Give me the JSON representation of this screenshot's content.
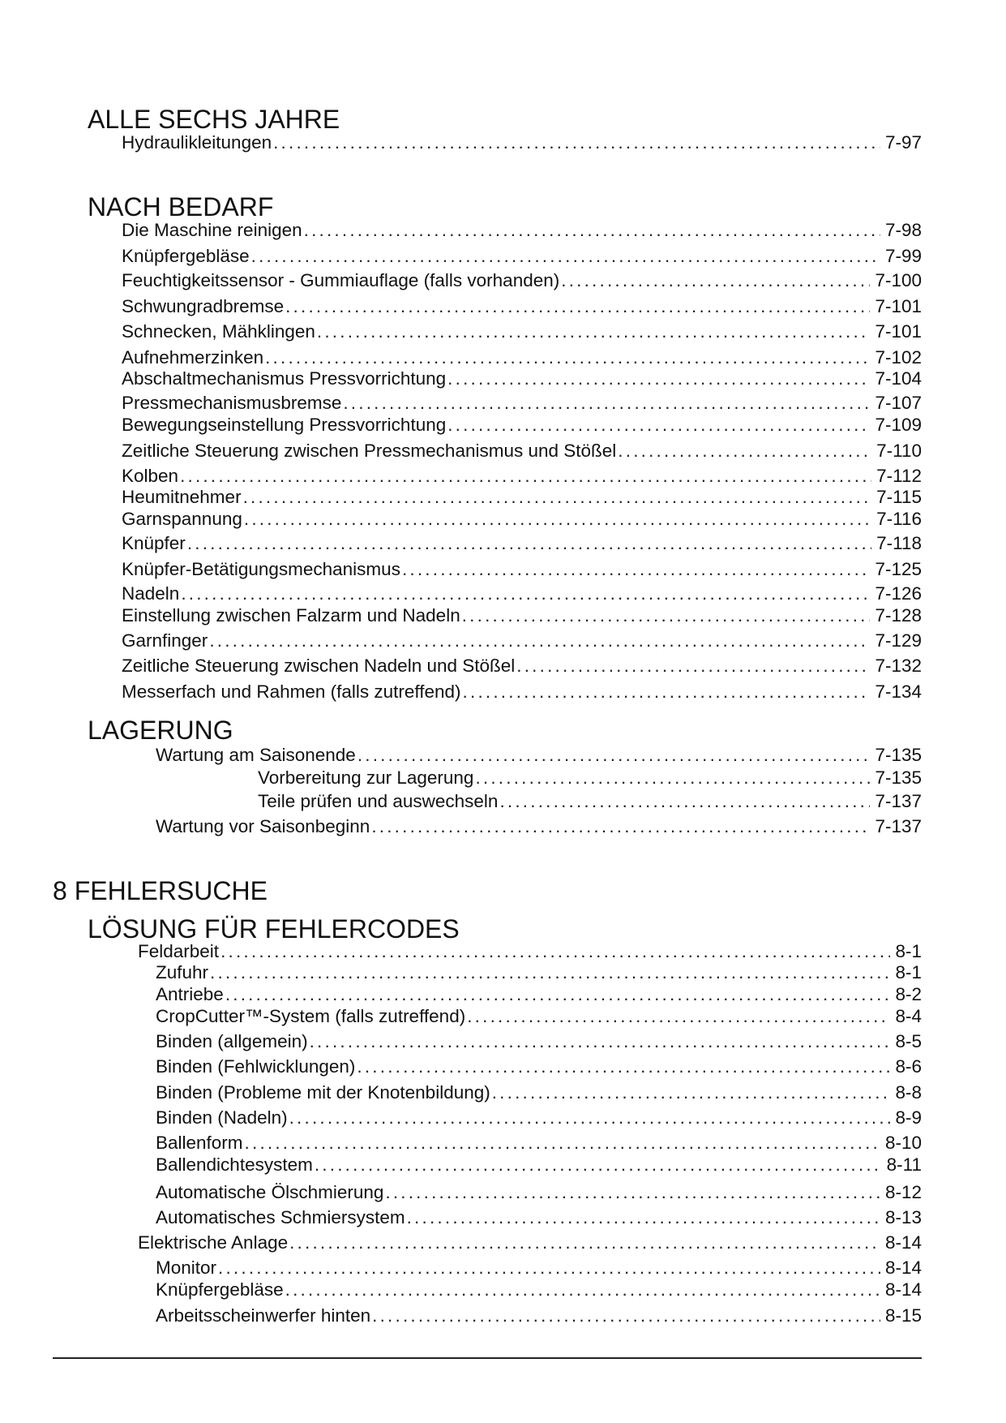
{
  "toc": [
    {
      "kind": "heading",
      "level": 1,
      "text": "ALLE SECHS JAHRE"
    },
    {
      "kind": "entry",
      "level": 1,
      "text": "Hydraulikleitungen",
      "page": "7-97"
    },
    {
      "kind": "heading",
      "level": 1,
      "text": "NACH BEDARF"
    },
    {
      "kind": "entry",
      "level": 1,
      "text": "Die Maschine reinigen",
      "page": "7-98"
    },
    {
      "kind": "entry",
      "level": 1,
      "text": "Knüpfergebläse",
      "page": "7-99"
    },
    {
      "kind": "entry",
      "level": 1,
      "text": "Feuchtigkeitssensor - Gummiauflage (falls vorhanden)",
      "page": "7-100"
    },
    {
      "kind": "entry",
      "level": 1,
      "text": "Schwungradbremse",
      "page": "7-101"
    },
    {
      "kind": "entry",
      "level": 1,
      "text": "Schnecken, Mähklingen",
      "page": "7-101"
    },
    {
      "kind": "entry",
      "level": 1,
      "text": "Aufnehmerzinken",
      "page": "7-102"
    },
    {
      "kind": "entry",
      "level": 1,
      "text": "Abschaltmechanismus Pressvorrichtung",
      "page": "7-104"
    },
    {
      "kind": "entry",
      "level": 1,
      "text": "Pressmechanismusbremse",
      "page": "7-107"
    },
    {
      "kind": "entry",
      "level": 1,
      "text": "Bewegungseinstellung Pressvorrichtung",
      "page": "7-109"
    },
    {
      "kind": "entry",
      "level": 1,
      "text": "Zeitliche Steuerung zwischen Pressmechanismus und Stößel",
      "page": "7-110"
    },
    {
      "kind": "entry",
      "level": 1,
      "text": "Kolben",
      "page": "7-112"
    },
    {
      "kind": "entry",
      "level": 1,
      "text": "Heumitnehmer",
      "page": "7-115"
    },
    {
      "kind": "entry",
      "level": 1,
      "text": "Garnspannung",
      "page": "7-116"
    },
    {
      "kind": "entry",
      "level": 1,
      "text": "Knüpfer",
      "page": "7-118"
    },
    {
      "kind": "entry",
      "level": 1,
      "text": "Knüpfer-Betätigungsmechanismus",
      "page": "7-125"
    },
    {
      "kind": "entry",
      "level": 1,
      "text": "Nadeln",
      "page": "7-126"
    },
    {
      "kind": "entry",
      "level": 1,
      "text": "Einstellung zwischen Falzarm und Nadeln",
      "page": "7-128"
    },
    {
      "kind": "entry",
      "level": 1,
      "text": "Garnfinger",
      "page": "7-129"
    },
    {
      "kind": "entry",
      "level": 1,
      "text": "Zeitliche Steuerung zwischen Nadeln und Stößel",
      "page": "7-132"
    },
    {
      "kind": "entry",
      "level": 1,
      "text": "Messerfach und Rahmen (falls zutreffend)",
      "page": "7-134"
    },
    {
      "kind": "heading",
      "level": 1,
      "text": "LAGERUNG"
    },
    {
      "kind": "entry",
      "level": 2,
      "text": "Wartung am Saisonende",
      "page": "7-135"
    },
    {
      "kind": "entry",
      "level": 3,
      "text": "Vorbereitung zur Lagerung",
      "page": "7-135"
    },
    {
      "kind": "entry",
      "level": 3,
      "text": "Teile prüfen und auswechseln",
      "page": "7-137"
    },
    {
      "kind": "entry",
      "level": 2,
      "text": "Wartung vor Saisonbeginn",
      "page": "7-137"
    },
    {
      "kind": "heading",
      "level": 0,
      "text": "8 FEHLERSUCHE"
    },
    {
      "kind": "heading",
      "level": 1,
      "text": "LÖSUNG FÜR FEHLERCODES"
    },
    {
      "kind": "entry",
      "level": "1b",
      "text": "Feldarbeit",
      "page": "8-1"
    },
    {
      "kind": "entry",
      "level": 2,
      "text": "Zufuhr",
      "page": "8-1"
    },
    {
      "kind": "entry",
      "level": 2,
      "text": "Antriebe",
      "page": "8-2"
    },
    {
      "kind": "entry",
      "level": 2,
      "text": "CropCutter™-System (falls zutreffend)",
      "page": "8-4"
    },
    {
      "kind": "entry",
      "level": 2,
      "text": "Binden (allgemein)",
      "page": "8-5"
    },
    {
      "kind": "entry",
      "level": 2,
      "text": "Binden (Fehlwicklungen)",
      "page": "8-6"
    },
    {
      "kind": "entry",
      "level": 2,
      "text": "Binden (Probleme mit der Knotenbildung)",
      "page": "8-8"
    },
    {
      "kind": "entry",
      "level": 2,
      "text": "Binden (Nadeln)",
      "page": "8-9"
    },
    {
      "kind": "entry",
      "level": 2,
      "text": "Ballenform",
      "page": "8-10"
    },
    {
      "kind": "entry",
      "level": 2,
      "text": "Ballendichtesystem",
      "page": "8-11"
    },
    {
      "kind": "entry",
      "level": 2,
      "text": "Automatische Ölschmierung",
      "page": "8-12"
    },
    {
      "kind": "entry",
      "level": 2,
      "text": "Automatisches Schmiersystem",
      "page": "8-13"
    },
    {
      "kind": "entry",
      "level": "1b",
      "text": "Elektrische Anlage",
      "page": "8-14"
    },
    {
      "kind": "entry",
      "level": 2,
      "text": "Monitor",
      "page": "8-14"
    },
    {
      "kind": "entry",
      "level": 2,
      "text": "Knüpfergebläse",
      "page": "8-14"
    },
    {
      "kind": "entry",
      "level": 2,
      "text": "Arbeitsscheinwerfer hinten",
      "page": "8-15"
    }
  ]
}
